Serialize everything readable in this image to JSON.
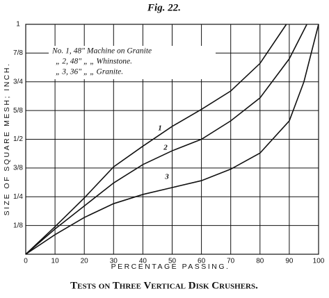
{
  "chart_data": {
    "type": "line",
    "title": "Fig. 22.",
    "caption": "Tests on Three Vertical Disk Crushers.",
    "xlabel": "PERCENTAGE PASSING.",
    "ylabel": "SIZE OF SQUARE MESH; INCH.",
    "annotations": [
      "No. 1, 48\" Machine on Granite",
      "„ 2, 48\"   „   „ Whinstone.",
      "„ 3, 36\"   „   „ Granite."
    ],
    "xlim": [
      0,
      100
    ],
    "xticks": [
      0,
      10,
      20,
      30,
      40,
      50,
      60,
      70,
      80,
      90,
      100
    ],
    "ylim": [
      0,
      1
    ],
    "yticks": [
      {
        "value": 0.125,
        "label": "1/8"
      },
      {
        "value": 0.25,
        "label": "1/4"
      },
      {
        "value": 0.375,
        "label": "3/8"
      },
      {
        "value": 0.5,
        "label": "1/2"
      },
      {
        "value": 0.625,
        "label": "5/8"
      },
      {
        "value": 0.75,
        "label": "3/4"
      },
      {
        "value": 0.875,
        "label": "7/8"
      },
      1
    ],
    "grid": true,
    "series": [
      {
        "name": "1",
        "color": "#111111",
        "x": [
          0,
          10,
          20,
          30,
          40,
          50,
          60,
          70,
          80,
          89
        ],
        "values": [
          0,
          0.12,
          0.245,
          0.38,
          0.47,
          0.556,
          0.63,
          0.71,
          0.83,
          1
        ]
      },
      {
        "name": "2",
        "color": "#111111",
        "x": [
          0,
          10,
          20,
          30,
          40,
          50,
          60,
          70,
          80,
          90,
          96
        ],
        "values": [
          0,
          0.11,
          0.21,
          0.31,
          0.39,
          0.45,
          0.5,
          0.58,
          0.68,
          0.85,
          1
        ]
      },
      {
        "name": "3",
        "color": "#111111",
        "x": [
          0,
          10,
          20,
          30,
          40,
          50,
          60,
          70,
          80,
          90,
          95,
          100
        ],
        "values": [
          0,
          0.085,
          0.16,
          0.22,
          0.26,
          0.29,
          0.32,
          0.37,
          0.44,
          0.58,
          0.75,
          1
        ]
      }
    ]
  }
}
